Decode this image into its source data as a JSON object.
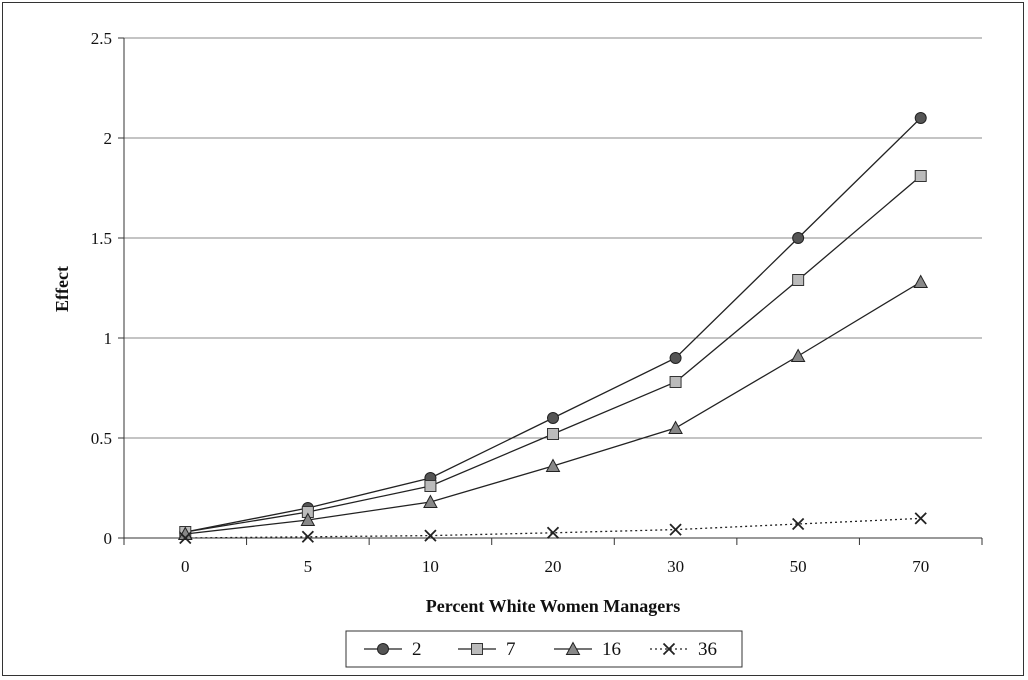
{
  "chart_data": {
    "type": "line",
    "title": "",
    "xlabel": "Percent White Women Managers",
    "ylabel": "Effect",
    "categories": [
      "0",
      "5",
      "10",
      "20",
      "30",
      "50",
      "70"
    ],
    "ylim": [
      0,
      2.5
    ],
    "yticks": [
      "0",
      "0.5",
      "1",
      "1.5",
      "2",
      "2.5"
    ],
    "grid": "horizontal",
    "legend_position": "bottom",
    "series": [
      {
        "name": "2",
        "marker": "circle",
        "line": "solid",
        "color": "#555555",
        "values": [
          0.03,
          0.15,
          0.3,
          0.6,
          0.9,
          1.5,
          2.1
        ]
      },
      {
        "name": "7",
        "marker": "square",
        "line": "solid",
        "color": "#bbbbbb",
        "values": [
          0.03,
          0.13,
          0.26,
          0.52,
          0.78,
          1.29,
          1.81
        ]
      },
      {
        "name": "16",
        "marker": "triangle",
        "line": "solid",
        "color": "#888888",
        "values": [
          0.02,
          0.09,
          0.18,
          0.36,
          0.55,
          0.91,
          1.28
        ]
      },
      {
        "name": "36",
        "marker": "x",
        "line": "dotted",
        "color": "#222222",
        "values": [
          0.0,
          0.006,
          0.012,
          0.026,
          0.042,
          0.07,
          0.098
        ]
      }
    ]
  }
}
